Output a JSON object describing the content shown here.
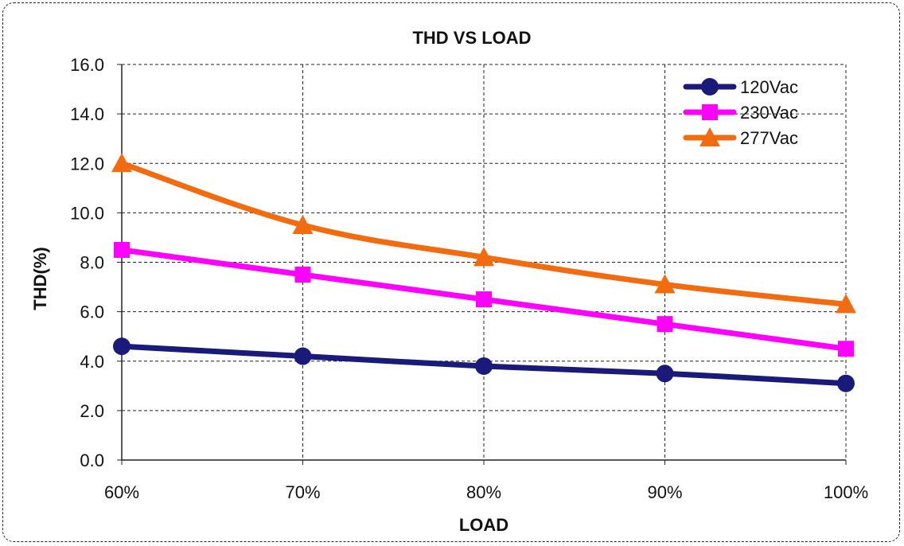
{
  "chart_data": {
    "type": "line",
    "title": "THD  VS LOAD",
    "xlabel": "LOAD",
    "ylabel": "THD(%)",
    "categories": [
      "60%",
      "70%",
      "80%",
      "90%",
      "100%"
    ],
    "ylim": [
      0,
      16
    ],
    "yticks": [
      "0.0",
      "2.0",
      "4.0",
      "6.0",
      "8.0",
      "10.0",
      "12.0",
      "14.0",
      "16.0"
    ],
    "grid": true,
    "legend_position": "top-right",
    "series": [
      {
        "name": "120Vac",
        "color": "#1a1a7a",
        "marker": "circle",
        "values": [
          4.6,
          4.2,
          3.8,
          3.5,
          3.1
        ]
      },
      {
        "name": "230Vac",
        "color": "#ff00ff",
        "marker": "square",
        "values": [
          8.5,
          7.5,
          6.5,
          5.5,
          4.5
        ]
      },
      {
        "name": "277Vac",
        "color": "#f26b0f",
        "marker": "triangle",
        "values": [
          12.0,
          9.5,
          8.2,
          7.1,
          6.3
        ]
      }
    ]
  }
}
